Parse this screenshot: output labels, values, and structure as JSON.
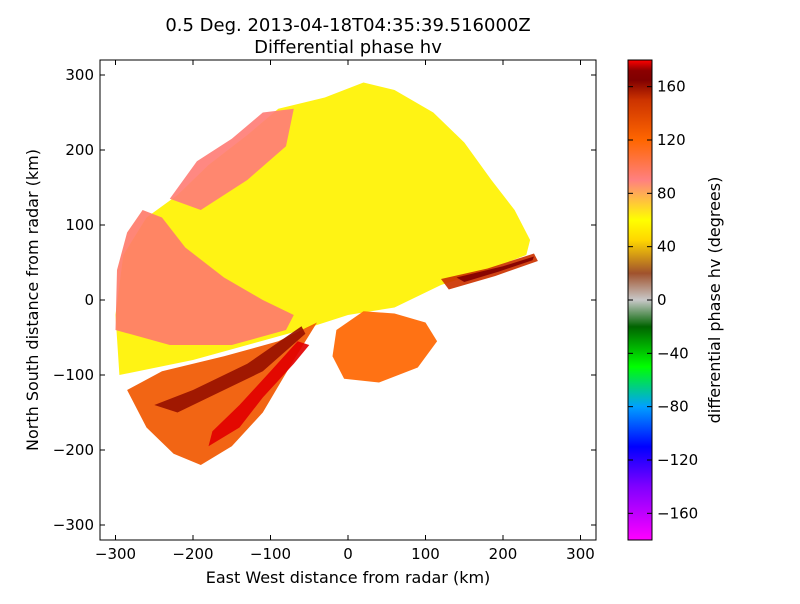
{
  "chart_data": {
    "type": "heatmap",
    "title_line1": "0.5 Deg. 2013-04-18T04:35:39.516000Z",
    "title_line2": "Differential phase hv",
    "xlabel": "East West distance from radar (km)",
    "ylabel": "North South distance from radar (km)",
    "xlim": [
      -320,
      320
    ],
    "ylim": [
      -320,
      320
    ],
    "xticks": [
      -300,
      -200,
      -100,
      0,
      100,
      200,
      300
    ],
    "yticks": [
      -300,
      -200,
      -100,
      0,
      100,
      200,
      300
    ],
    "xtick_labels": [
      "−300",
      "−200",
      "−100",
      "0",
      "100",
      "200",
      "300"
    ],
    "ytick_labels": [
      "−300",
      "−200",
      "−100",
      "0",
      "100",
      "200",
      "300"
    ],
    "colorbar": {
      "label": "differential phase hv (degrees)",
      "range": [
        -180,
        180
      ],
      "ticks": [
        160,
        120,
        80,
        40,
        0,
        -40,
        -80,
        -120,
        -160
      ],
      "tick_labels": [
        "160",
        "120",
        "80",
        "40",
        "0",
        "−40",
        "−80",
        "−120",
        "−160"
      ],
      "stops": [
        {
          "v": -180,
          "color": "#ff00ff"
        },
        {
          "v": -140,
          "color": "#8000ff"
        },
        {
          "v": -110,
          "color": "#0000ff"
        },
        {
          "v": -80,
          "color": "#00a0ff"
        },
        {
          "v": -50,
          "color": "#00ff00"
        },
        {
          "v": -20,
          "color": "#006400"
        },
        {
          "v": 0,
          "color": "#c8c8c8"
        },
        {
          "v": 20,
          "color": "#a0522d"
        },
        {
          "v": 45,
          "color": "#ffd700"
        },
        {
          "v": 60,
          "color": "#ffff00"
        },
        {
          "v": 90,
          "color": "#ff8080"
        },
        {
          "v": 120,
          "color": "#ff6600"
        },
        {
          "v": 150,
          "color": "#cc3300"
        },
        {
          "v": 165,
          "color": "#800000"
        },
        {
          "v": 172,
          "color": "#8b0000"
        },
        {
          "v": 180,
          "color": "#ff0000"
        }
      ]
    },
    "echo_regions": [
      {
        "name": "main-echo",
        "value": 55,
        "polygon": [
          [
            -295,
            -100
          ],
          [
            -300,
            -20
          ],
          [
            -290,
            60
          ],
          [
            -260,
            110
          ],
          [
            -220,
            140
          ],
          [
            -180,
            180
          ],
          [
            -130,
            220
          ],
          [
            -90,
            255
          ],
          [
            -30,
            270
          ],
          [
            20,
            290
          ],
          [
            60,
            280
          ],
          [
            110,
            250
          ],
          [
            150,
            210
          ],
          [
            185,
            160
          ],
          [
            215,
            120
          ],
          [
            235,
            80
          ],
          [
            230,
            60
          ],
          [
            180,
            40
          ],
          [
            120,
            20
          ],
          [
            60,
            -10
          ],
          [
            0,
            -20
          ],
          [
            -60,
            -40
          ],
          [
            -130,
            -60
          ],
          [
            -200,
            -80
          ]
        ]
      },
      {
        "name": "west-pink",
        "value": 95,
        "polygon": [
          [
            -300,
            -40
          ],
          [
            -298,
            40
          ],
          [
            -285,
            90
          ],
          [
            -265,
            120
          ],
          [
            -240,
            110
          ],
          [
            -210,
            70
          ],
          [
            -160,
            30
          ],
          [
            -110,
            0
          ],
          [
            -70,
            -20
          ],
          [
            -80,
            -40
          ],
          [
            -150,
            -60
          ],
          [
            -230,
            -60
          ]
        ]
      },
      {
        "name": "north-pink",
        "value": 92,
        "polygon": [
          [
            -230,
            135
          ],
          [
            -195,
            185
          ],
          [
            -150,
            215
          ],
          [
            -110,
            250
          ],
          [
            -70,
            255
          ],
          [
            -80,
            205
          ],
          [
            -130,
            160
          ],
          [
            -190,
            120
          ]
        ]
      },
      {
        "name": "south-orange",
        "value": 128,
        "polygon": [
          [
            -285,
            -120
          ],
          [
            -260,
            -170
          ],
          [
            -225,
            -205
          ],
          [
            -190,
            -220
          ],
          [
            -150,
            -195
          ],
          [
            -110,
            -150
          ],
          [
            -70,
            -80
          ],
          [
            -40,
            -30
          ],
          [
            -90,
            -55
          ],
          [
            -160,
            -75
          ],
          [
            -240,
            -95
          ]
        ]
      },
      {
        "name": "south-ray-dark",
        "value": 160,
        "polygon": [
          [
            -250,
            -140
          ],
          [
            -220,
            -150
          ],
          [
            -170,
            -125
          ],
          [
            -110,
            -95
          ],
          [
            -55,
            -45
          ],
          [
            -60,
            -35
          ],
          [
            -130,
            -85
          ],
          [
            -200,
            -120
          ]
        ]
      },
      {
        "name": "south-ray-red",
        "value": 178,
        "polygon": [
          [
            -180,
            -195
          ],
          [
            -140,
            -170
          ],
          [
            -110,
            -130
          ],
          [
            -70,
            -85
          ],
          [
            -50,
            -60
          ],
          [
            -65,
            -55
          ],
          [
            -100,
            -95
          ],
          [
            -140,
            -140
          ],
          [
            -175,
            -175
          ]
        ]
      },
      {
        "name": "east-band",
        "value": 150,
        "polygon": [
          [
            120,
            28
          ],
          [
            180,
            42
          ],
          [
            240,
            62
          ],
          [
            245,
            52
          ],
          [
            190,
            32
          ],
          [
            130,
            14
          ]
        ]
      },
      {
        "name": "east-band-dark",
        "value": 166,
        "polygon": [
          [
            140,
            30
          ],
          [
            200,
            45
          ],
          [
            240,
            58
          ],
          [
            238,
            53
          ],
          [
            195,
            38
          ],
          [
            150,
            24
          ]
        ]
      },
      {
        "name": "se-cluster",
        "value": 120,
        "polygon": [
          [
            -15,
            -40
          ],
          [
            20,
            -15
          ],
          [
            60,
            -18
          ],
          [
            100,
            -30
          ],
          [
            115,
            -55
          ],
          [
            90,
            -90
          ],
          [
            40,
            -110
          ],
          [
            -5,
            -105
          ],
          [
            -20,
            -75
          ]
        ]
      }
    ]
  }
}
